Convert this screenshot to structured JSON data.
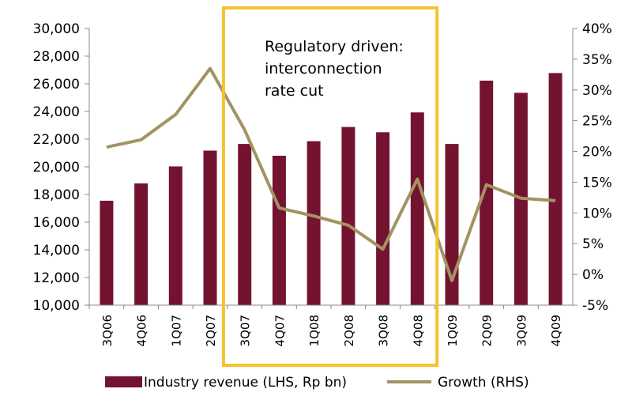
{
  "chart_data": {
    "type": "bar",
    "categories": [
      "3Q06",
      "4Q06",
      "1Q07",
      "2Q07",
      "3Q07",
      "4Q07",
      "1Q08",
      "2Q08",
      "3Q08",
      "4Q08",
      "1Q09",
      "2Q09",
      "3Q09",
      "4Q09"
    ],
    "series": [
      {
        "name": "Industry revenue (LHS, Rp bn)",
        "type": "bar",
        "axis": "left",
        "color": "#74132f",
        "values": [
          17550,
          18800,
          20030,
          21170,
          21650,
          20800,
          21850,
          22880,
          22500,
          23930,
          21650,
          26230,
          25350,
          26780
        ]
      },
      {
        "name": "Growth (RHS)",
        "type": "line",
        "axis": "right",
        "color": "#a39363",
        "values": [
          20.7,
          21.9,
          26.0,
          33.5,
          23.5,
          10.8,
          9.5,
          8.0,
          4.1,
          15.5,
          -1.0,
          14.6,
          12.4,
          12.0
        ]
      }
    ],
    "y_left": {
      "range": [
        10000,
        30000
      ],
      "ticks": [
        "10,000",
        "12,000",
        "14,000",
        "16,000",
        "18,000",
        "20,000",
        "22,000",
        "24,000",
        "26,000",
        "28,000",
        "30,000"
      ]
    },
    "y_right": {
      "range": [
        -5,
        40
      ],
      "ticks": [
        "-5%",
        "0%",
        "5%",
        "10%",
        "15%",
        "20%",
        "25%",
        "30%",
        "35%",
        "40%"
      ]
    },
    "annotation": {
      "lines": [
        "Regulatory driven:",
        "interconnection",
        "rate cut"
      ],
      "highlight_color": "#f5c330"
    },
    "legend": {
      "position": "bottom",
      "items": [
        "Industry revenue (LHS, Rp bn)",
        "Growth (RHS)"
      ]
    },
    "grid": false
  }
}
